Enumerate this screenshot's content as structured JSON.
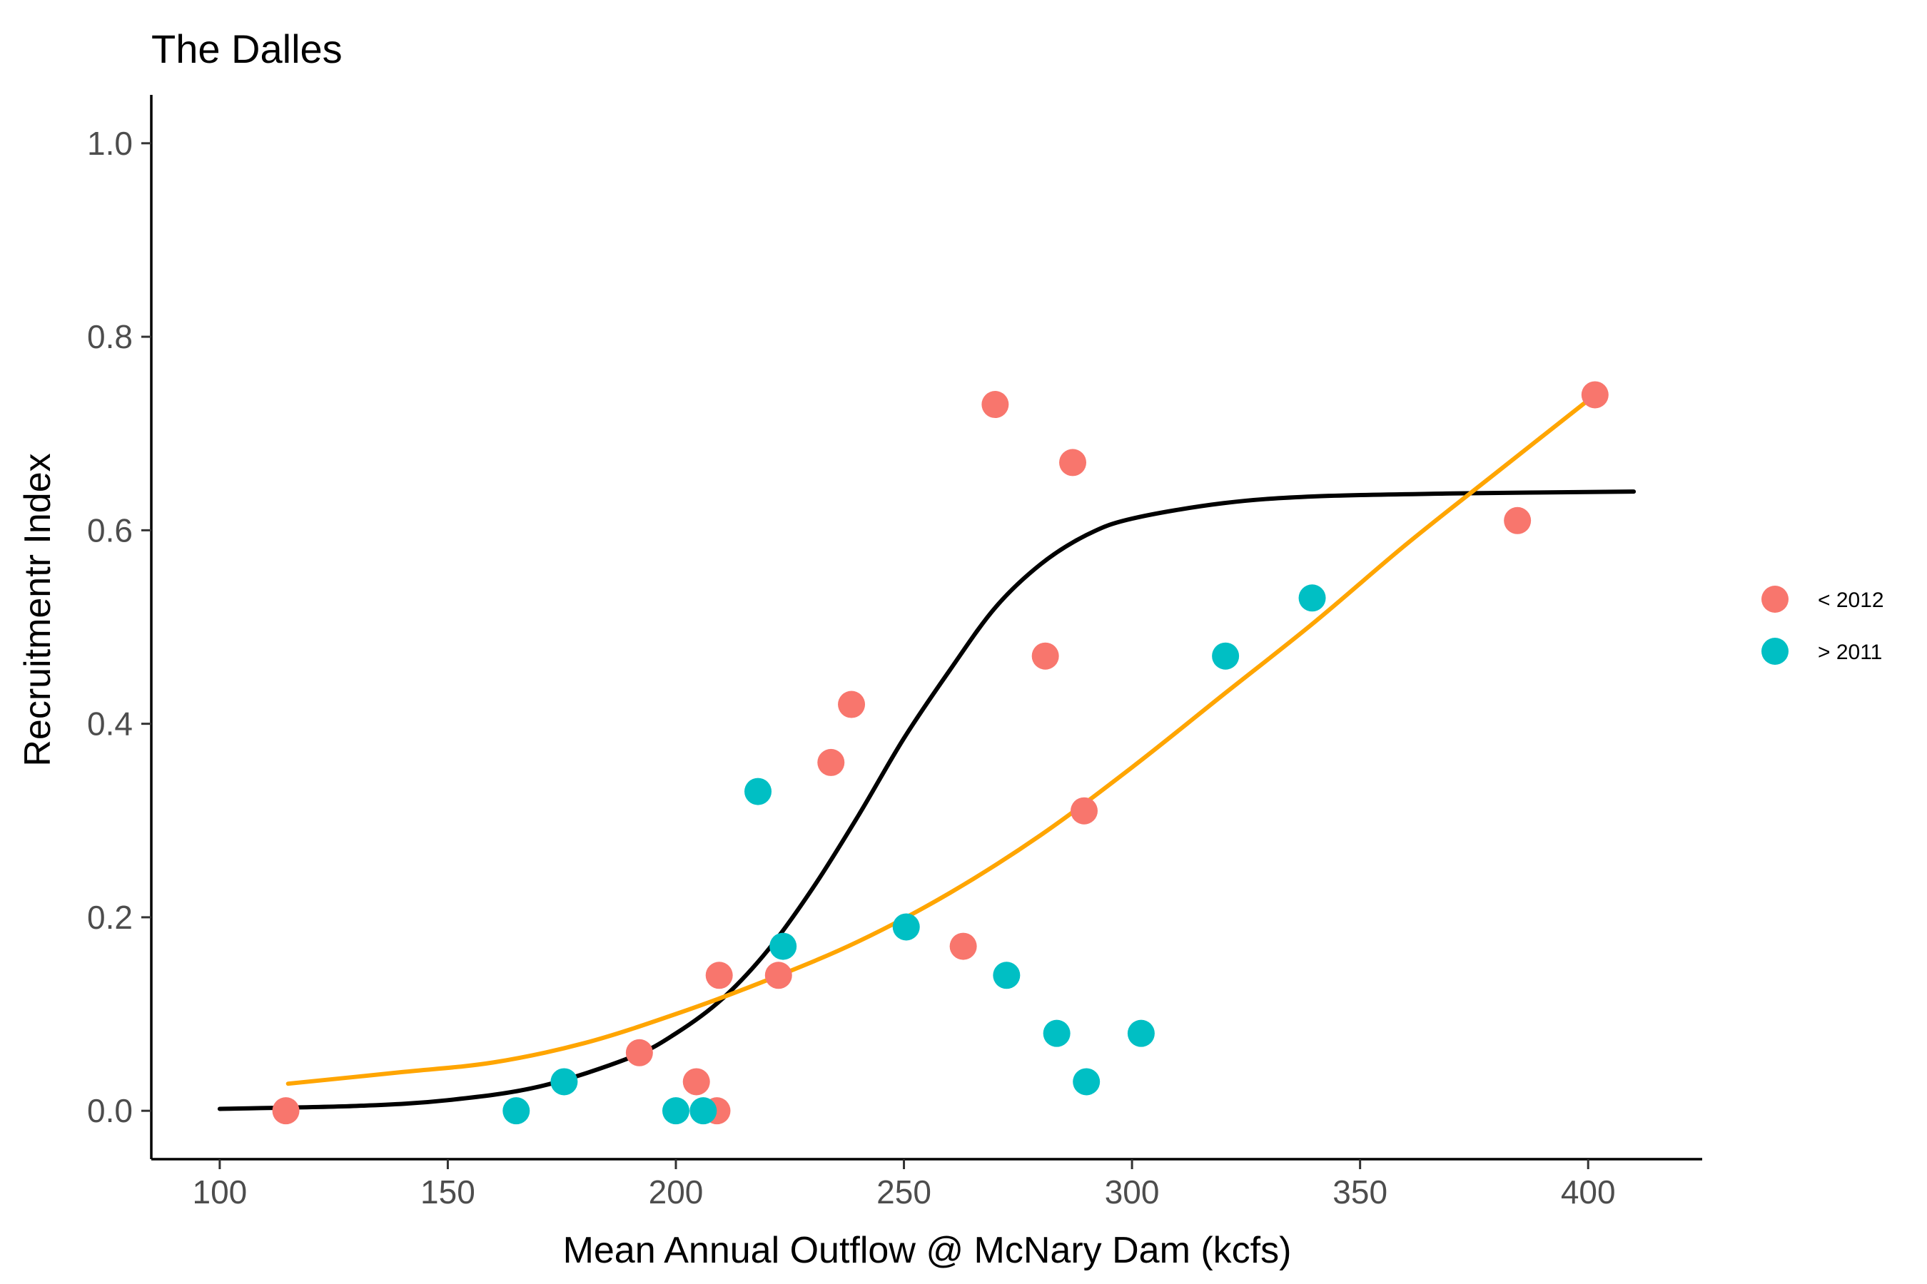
{
  "chart_data": {
    "type": "scatter",
    "title": "The Dalles",
    "xlabel": "Mean Annual Outflow @ McNary Dam (kcfs)",
    "ylabel": "Recruitmentr Index",
    "xlim": [
      85,
      425
    ],
    "ylim": [
      -0.05,
      1.05
    ],
    "x_ticks": [
      100,
      150,
      200,
      250,
      300,
      350,
      400
    ],
    "y_ticks": [
      0.0,
      0.2,
      0.4,
      0.6,
      0.8,
      1.0
    ],
    "x_tick_labels": [
      "100",
      "150",
      "200",
      "250",
      "300",
      "350",
      "400"
    ],
    "y_tick_labels": [
      "0.0",
      "0.2",
      "0.4",
      "0.6",
      "0.8",
      "1.0"
    ],
    "grid": false,
    "legend_position": "right",
    "series": [
      {
        "name": "< 2012",
        "color": "#F8766D",
        "points": [
          [
            114.5,
            0.0
          ],
          [
            192,
            0.06
          ],
          [
            204.5,
            0.03
          ],
          [
            209,
            0.0
          ],
          [
            209.5,
            0.14
          ],
          [
            222.5,
            0.14
          ],
          [
            234,
            0.36
          ],
          [
            238.5,
            0.42
          ],
          [
            263,
            0.17
          ],
          [
            270,
            0.73
          ],
          [
            281,
            0.47
          ],
          [
            287,
            0.67
          ],
          [
            289.5,
            0.31
          ],
          [
            384.5,
            0.61
          ],
          [
            401.5,
            0.74
          ]
        ]
      },
      {
        "name": "> 2011",
        "color": "#00BFC4",
        "points": [
          [
            165,
            0.0
          ],
          [
            175.5,
            0.03
          ],
          [
            200,
            0.0
          ],
          [
            206,
            0.0
          ],
          [
            218,
            0.33
          ],
          [
            223.5,
            0.17
          ],
          [
            250.5,
            0.19
          ],
          [
            272.5,
            0.14
          ],
          [
            283.5,
            0.08
          ],
          [
            290,
            0.03
          ],
          [
            302,
            0.08
          ],
          [
            320.5,
            0.47
          ],
          [
            339.5,
            0.53
          ]
        ]
      }
    ],
    "fits": [
      {
        "name": "logistic fit (black)",
        "color": "#000000",
        "points": [
          [
            100,
            0.002
          ],
          [
            130,
            0.005
          ],
          [
            150,
            0.011
          ],
          [
            170,
            0.025
          ],
          [
            190,
            0.055
          ],
          [
            200,
            0.08
          ],
          [
            210,
            0.115
          ],
          [
            220,
            0.165
          ],
          [
            230,
            0.23
          ],
          [
            240,
            0.305
          ],
          [
            250,
            0.385
          ],
          [
            260,
            0.455
          ],
          [
            270,
            0.52
          ],
          [
            280,
            0.565
          ],
          [
            290,
            0.595
          ],
          [
            300,
            0.612
          ],
          [
            320,
            0.628
          ],
          [
            340,
            0.635
          ],
          [
            370,
            0.638
          ],
          [
            410,
            0.64
          ]
        ]
      },
      {
        "name": "fit (orange)",
        "color": "#FFA500",
        "points": [
          [
            115,
            0.028
          ],
          [
            140,
            0.04
          ],
          [
            160,
            0.05
          ],
          [
            180,
            0.07
          ],
          [
            200,
            0.1
          ],
          [
            220,
            0.135
          ],
          [
            240,
            0.175
          ],
          [
            260,
            0.225
          ],
          [
            280,
            0.285
          ],
          [
            300,
            0.355
          ],
          [
            320,
            0.43
          ],
          [
            340,
            0.505
          ],
          [
            360,
            0.585
          ],
          [
            380,
            0.66
          ],
          [
            401.5,
            0.74
          ]
        ]
      }
    ]
  }
}
